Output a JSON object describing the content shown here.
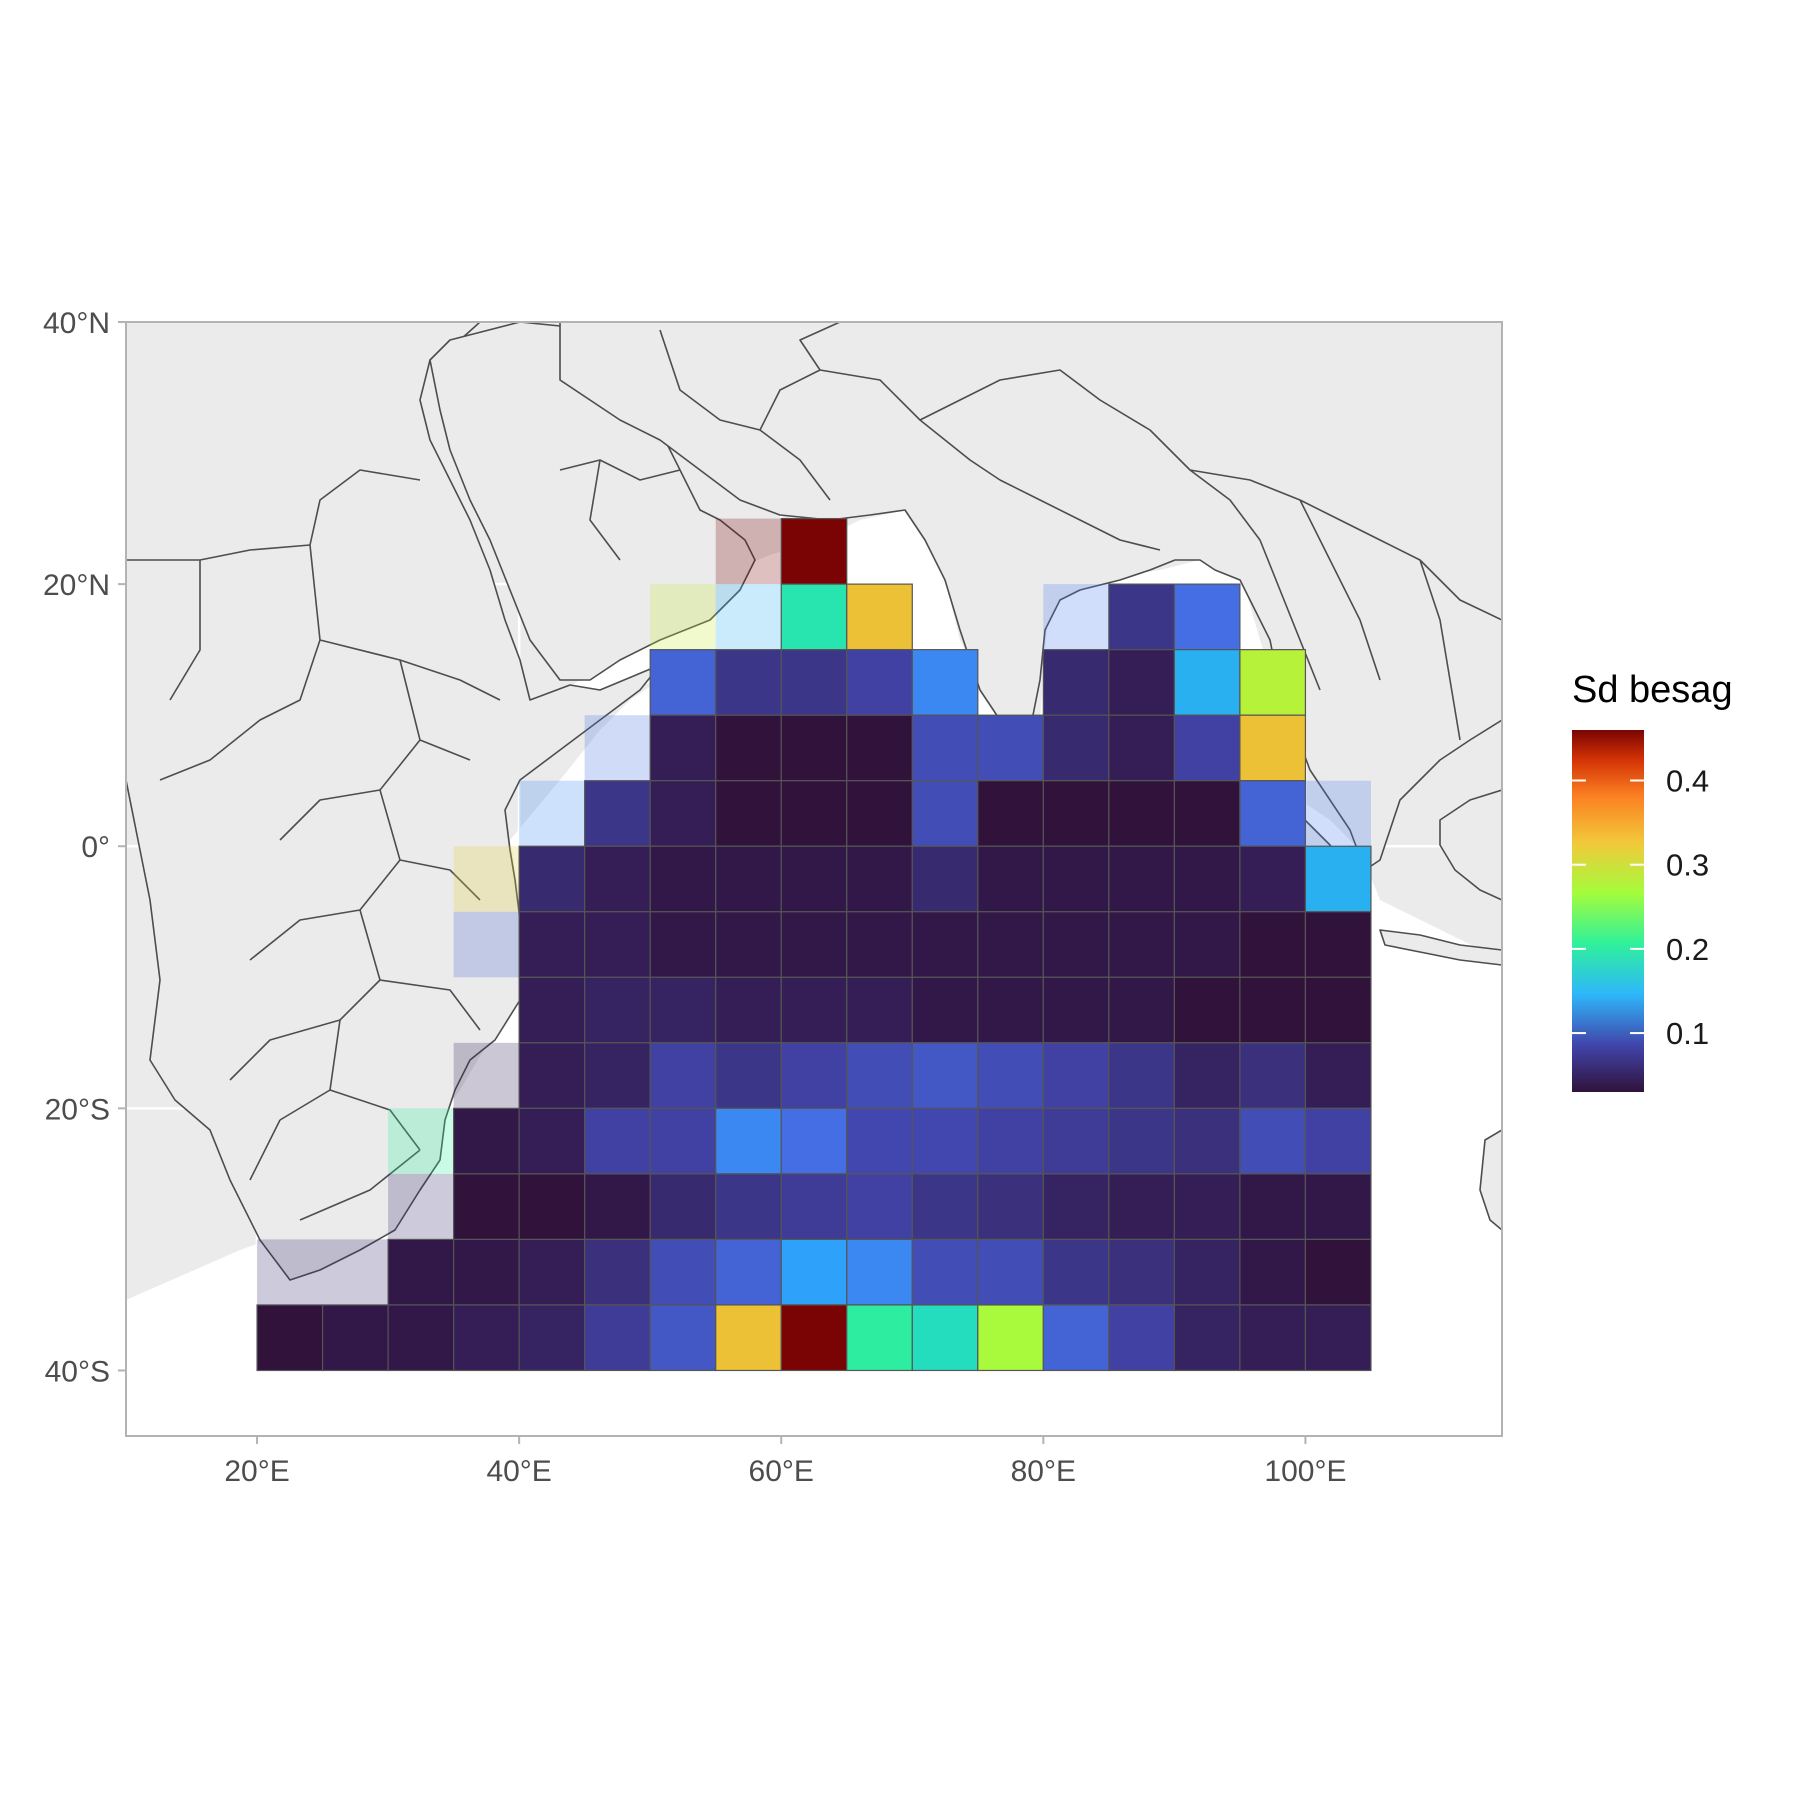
{
  "legend": {
    "title": "Sd besag",
    "ticks": [
      {
        "value": 0.1,
        "label": "0.1"
      },
      {
        "value": 0.2,
        "label": "0.2"
      },
      {
        "value": 0.3,
        "label": "0.3"
      },
      {
        "value": 0.4,
        "label": "0.4"
      }
    ],
    "min": 0.03,
    "max": 0.46,
    "colormap": "turbo"
  },
  "axes": {
    "x_ticks": [
      {
        "value": 20,
        "label": "20°E"
      },
      {
        "value": 40,
        "label": "40°E"
      },
      {
        "value": 60,
        "label": "60°E"
      },
      {
        "value": 80,
        "label": "80°E"
      },
      {
        "value": 100,
        "label": "100°E"
      }
    ],
    "y_ticks": [
      {
        "value": 40,
        "label": "40°N"
      },
      {
        "value": 20,
        "label": "20°N"
      },
      {
        "value": 0,
        "label": "0°"
      },
      {
        "value": -20,
        "label": "20°S"
      },
      {
        "value": -40,
        "label": "40°S"
      }
    ],
    "xlim": [
      10,
      115
    ],
    "ylim": [
      -45,
      40
    ]
  },
  "colors": {
    "panel_background": "#ebebeb",
    "ocean": "#ffffff",
    "grid": "#ffffff",
    "cell_border": "#555555",
    "country_border": "#4d4d4d"
  },
  "chart_data": {
    "type": "heatmap",
    "description_units": "grid cells 5x5 degrees, value = standard deviation of besag effect",
    "cell_size_deg": 5,
    "rows": [
      {
        "lat_top": 25,
        "lon_start": 55,
        "values": [
          0.46,
          0.46
        ],
        "alpha": [
          0.25,
          1
        ]
      },
      {
        "lat_top": 20,
        "lon_start": 50,
        "values": [
          0.29,
          0.16,
          0.21,
          0.33
        ],
        "alpha": [
          0.25,
          0.25,
          1,
          1
        ]
      },
      {
        "lat_top": 20,
        "lon_start": 80,
        "values": [
          0.12,
          0.06,
          0.11
        ],
        "alpha": [
          0.25,
          1,
          1
        ]
      },
      {
        "lat_top": 15,
        "lon_start": 50,
        "values": [
          0.1,
          0.06,
          0.06,
          0.07,
          0.13
        ],
        "alpha": [
          1,
          1,
          1,
          1,
          1
        ]
      },
      {
        "lat_top": 15,
        "lon_start": 80,
        "values": [
          0.05,
          0.04,
          0.16,
          0.28
        ],
        "alpha": [
          1,
          1,
          1,
          1
        ]
      },
      {
        "lat_top": 10,
        "lon_start": 45,
        "values": [
          0.11,
          0.04,
          0.03,
          0.03,
          0.03,
          0.08,
          0.08,
          0.05,
          0.04,
          0.07,
          0.33
        ],
        "alpha": [
          0.25,
          1,
          1,
          1,
          1,
          1,
          1,
          1,
          1,
          1,
          1
        ]
      },
      {
        "lat_top": 5,
        "lon_start": 40,
        "values": [
          0.13,
          0.06,
          0.04,
          0.03,
          0.03,
          0.03,
          0.08,
          0.03,
          0.03,
          0.03,
          0.03,
          0.1,
          0.12
        ],
        "alpha": [
          0.25,
          1,
          1,
          1,
          1,
          1,
          1,
          1,
          1,
          1,
          1,
          1,
          0.25
        ]
      },
      {
        "lat_top": 0,
        "lon_start": 35,
        "values": [
          0.32,
          0.05,
          0.04,
          0.035,
          0.035,
          0.035,
          0.035,
          0.05,
          0.035,
          0.035,
          0.035,
          0.035,
          0.04,
          0.16
        ],
        "alpha": [
          0.25,
          1,
          1,
          1,
          1,
          1,
          1,
          1,
          1,
          1,
          1,
          1,
          1,
          1
        ]
      },
      {
        "lat_top": -5,
        "lon_start": 35,
        "values": [
          0.1,
          0.04,
          0.04,
          0.035,
          0.035,
          0.035,
          0.035,
          0.035,
          0.035,
          0.035,
          0.035,
          0.035,
          0.03,
          0.03
        ],
        "alpha": [
          0.25,
          1,
          1,
          1,
          1,
          1,
          1,
          1,
          1,
          1,
          1,
          1,
          1,
          1
        ]
      },
      {
        "lat_top": -10,
        "lon_start": 40,
        "values": [
          0.04,
          0.045,
          0.045,
          0.04,
          0.04,
          0.04,
          0.035,
          0.035,
          0.035,
          0.035,
          0.03,
          0.03,
          0.03
        ],
        "alpha": [
          1,
          1,
          1,
          1,
          1,
          1,
          1,
          1,
          1,
          1,
          1,
          1,
          1
        ]
      },
      {
        "lat_top": -15,
        "lon_start": 35,
        "values": [
          0.04,
          0.04,
          0.045,
          0.07,
          0.06,
          0.07,
          0.08,
          0.09,
          0.08,
          0.07,
          0.06,
          0.045,
          0.055,
          0.04
        ],
        "alpha": [
          0.25,
          1,
          1,
          1,
          1,
          1,
          1,
          1,
          1,
          1,
          1,
          1,
          1,
          1
        ]
      },
      {
        "lat_top": -20,
        "lon_start": 30,
        "values": [
          0.22,
          0.035,
          0.04,
          0.07,
          0.07,
          0.13,
          0.11,
          0.075,
          0.075,
          0.07,
          0.065,
          0.06,
          0.055,
          0.08,
          0.07
        ],
        "alpha": [
          0.25,
          1,
          1,
          1,
          1,
          1,
          1,
          1,
          1,
          1,
          1,
          1,
          1,
          1,
          1
        ]
      },
      {
        "lat_top": -25,
        "lon_start": 30,
        "values": [
          0.05,
          0.03,
          0.03,
          0.035,
          0.05,
          0.06,
          0.065,
          0.07,
          0.06,
          0.055,
          0.045,
          0.04,
          0.04,
          0.035,
          0.035
        ],
        "alpha": [
          0.25,
          1,
          1,
          1,
          1,
          1,
          1,
          1,
          1,
          1,
          1,
          1,
          1,
          1,
          1
        ]
      },
      {
        "lat_top": -30,
        "lon_start": 20,
        "values": [
          0.05,
          0.05,
          0.035,
          0.035,
          0.04,
          0.055,
          0.08,
          0.1,
          0.15,
          0.13,
          0.08,
          0.08,
          0.06,
          0.055,
          0.045,
          0.035,
          0.03
        ],
        "alpha": [
          0.25,
          0.25,
          1,
          1,
          1,
          1,
          1,
          1,
          1,
          1,
          1,
          1,
          1,
          1,
          1,
          1,
          1
        ]
      },
      {
        "lat_top": -35,
        "lon_start": 20,
        "values": [
          0.03,
          0.035,
          0.035,
          0.04,
          0.045,
          0.065,
          0.09,
          0.33,
          0.46,
          0.22,
          0.2,
          0.27,
          0.1,
          0.07,
          0.045,
          0.04,
          0.04
        ],
        "alpha": [
          1,
          1,
          1,
          1,
          1,
          1,
          1,
          1,
          1,
          1,
          1,
          1,
          1,
          1,
          1,
          1,
          1
        ]
      }
    ]
  }
}
